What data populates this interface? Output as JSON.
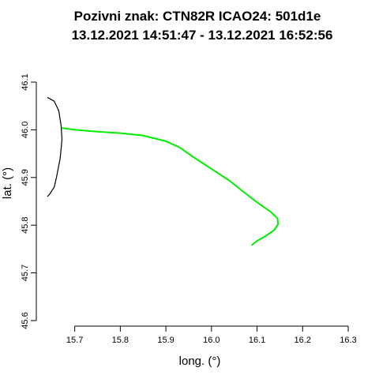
{
  "chart_data": {
    "type": "line",
    "title_line1": "Pozivni znak: CTN82R   ICAO24: 501d1e",
    "title_line2": "13.12.2021 14:51:47 - 13.12.2021 16:52:56",
    "xlabel": "long. (°)",
    "ylabel": "lat. (°)",
    "xlim": [
      15.64,
      16.3
    ],
    "ylim": [
      45.6,
      46.1
    ],
    "x_ticks": [
      "15.7",
      "15.8",
      "15.9",
      "16.0",
      "16.1",
      "16.2",
      "16.3"
    ],
    "y_ticks": [
      "45.6",
      "45.7",
      "45.8",
      "45.9",
      "46.0",
      "46.1"
    ],
    "series": [
      {
        "color": "#00ee00",
        "points": [
          [
            15.67,
            46.004
          ],
          [
            15.7,
            46.0
          ],
          [
            15.75,
            45.996
          ],
          [
            15.8,
            45.993
          ],
          [
            15.85,
            45.988
          ],
          [
            15.9,
            45.976
          ],
          [
            15.93,
            45.963
          ],
          [
            15.96,
            45.943
          ],
          [
            16.0,
            45.918
          ],
          [
            16.04,
            45.893
          ],
          [
            16.07,
            45.87
          ],
          [
            16.1,
            45.848
          ],
          [
            16.13,
            45.828
          ],
          [
            16.145,
            45.814
          ],
          [
            16.146,
            45.802
          ],
          [
            16.138,
            45.79
          ],
          [
            16.12,
            45.778
          ],
          [
            16.1,
            45.767
          ],
          [
            16.088,
            45.758
          ]
        ]
      },
      {
        "color": "#000000",
        "points": [
          [
            15.64,
            46.068
          ],
          [
            15.655,
            46.06
          ],
          [
            15.665,
            46.04
          ],
          [
            15.67,
            46.01
          ],
          [
            15.672,
            45.98
          ],
          [
            15.668,
            45.94
          ],
          [
            15.66,
            45.9
          ],
          [
            15.655,
            45.88
          ],
          [
            15.645,
            45.865
          ],
          [
            15.64,
            45.86
          ]
        ]
      }
    ]
  }
}
